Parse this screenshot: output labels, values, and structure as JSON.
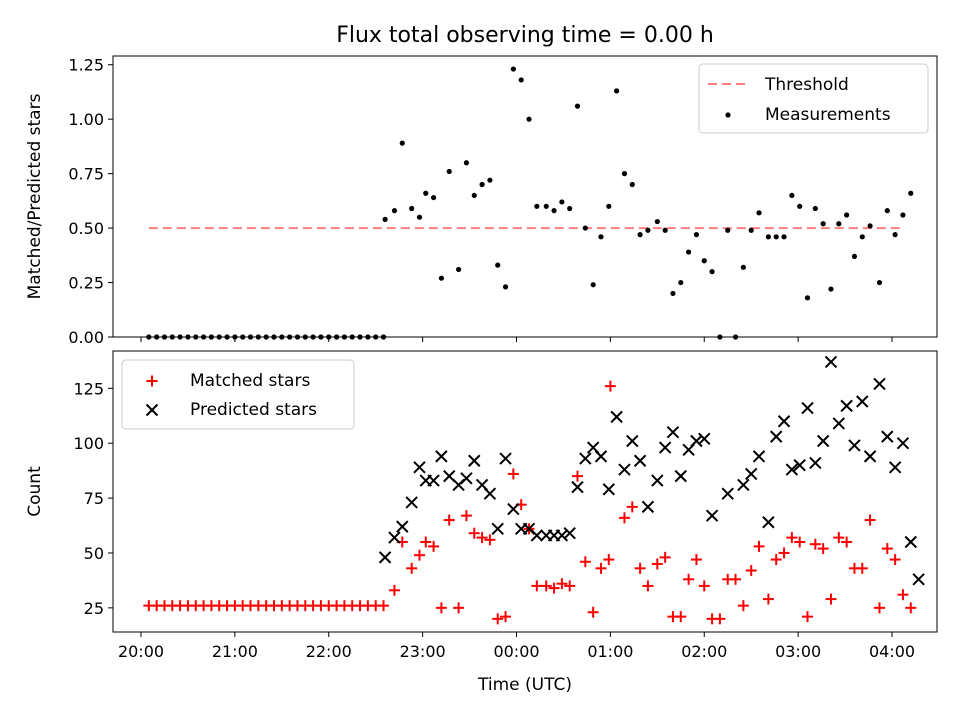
{
  "chart_data": [
    {
      "type": "scatter",
      "panel": "top",
      "title": "Flux total observing time = 0.00 h",
      "xlabel": "",
      "ylabel": "Matched/Predicted stars",
      "ylim": [
        0,
        1.29
      ],
      "yticks": [
        "0.00",
        "0.25",
        "0.50",
        "0.75",
        "1.00",
        "1.25"
      ],
      "legend_position": "top-right",
      "grid": false,
      "threshold": {
        "name": "Threshold",
        "value": 0.5,
        "color": "#ff7f7f",
        "x_start": "20:05",
        "x_end": "04:05"
      },
      "series": [
        {
          "name": "Measurements",
          "color": "#000000",
          "points": [
            [
              "20:05",
              0
            ],
            [
              "20:10",
              0
            ],
            [
              "20:15",
              0
            ],
            [
              "20:20",
              0
            ],
            [
              "20:25",
              0
            ],
            [
              "20:30",
              0
            ],
            [
              "20:35",
              0
            ],
            [
              "20:40",
              0
            ],
            [
              "20:45",
              0
            ],
            [
              "20:50",
              0
            ],
            [
              "20:55",
              0
            ],
            [
              "21:00",
              0
            ],
            [
              "21:05",
              0
            ],
            [
              "21:10",
              0
            ],
            [
              "21:15",
              0
            ],
            [
              "21:20",
              0
            ],
            [
              "21:25",
              0
            ],
            [
              "21:30",
              0
            ],
            [
              "21:35",
              0
            ],
            [
              "21:40",
              0
            ],
            [
              "21:45",
              0
            ],
            [
              "21:50",
              0
            ],
            [
              "21:55",
              0
            ],
            [
              "22:00",
              0
            ],
            [
              "22:05",
              0
            ],
            [
              "22:10",
              0
            ],
            [
              "22:15",
              0
            ],
            [
              "22:20",
              0
            ],
            [
              "22:25",
              0
            ],
            [
              "22:30",
              0
            ],
            [
              "22:35",
              0
            ],
            [
              "22:36",
              0.54
            ],
            [
              "22:42",
              0.58
            ],
            [
              "22:47",
              0.89
            ],
            [
              "22:53",
              0.59
            ],
            [
              "22:58",
              0.55
            ],
            [
              "23:02",
              0.66
            ],
            [
              "23:07",
              0.64
            ],
            [
              "23:12",
              0.27
            ],
            [
              "23:17",
              0.76
            ],
            [
              "23:23",
              0.31
            ],
            [
              "23:28",
              0.8
            ],
            [
              "23:33",
              0.65
            ],
            [
              "23:38",
              0.7
            ],
            [
              "23:43",
              0.72
            ],
            [
              "23:48",
              0.33
            ],
            [
              "23:53",
              0.23
            ],
            [
              "23:58",
              1.23
            ],
            [
              "00:03",
              1.18
            ],
            [
              "00:08",
              1.0
            ],
            [
              "00:13",
              0.6
            ],
            [
              "00:19",
              0.6
            ],
            [
              "00:24",
              0.58
            ],
            [
              "00:29",
              0.62
            ],
            [
              "00:34",
              0.59
            ],
            [
              "00:39",
              1.06
            ],
            [
              "00:44",
              0.5
            ],
            [
              "00:49",
              0.24
            ],
            [
              "00:54",
              0.46
            ],
            [
              "00:59",
              0.6
            ],
            [
              "01:04",
              1.13
            ],
            [
              "01:09",
              0.75
            ],
            [
              "01:14",
              0.7
            ],
            [
              "01:19",
              0.47
            ],
            [
              "01:24",
              0.49
            ],
            [
              "01:30",
              0.53
            ],
            [
              "01:35",
              0.49
            ],
            [
              "01:40",
              0.2
            ],
            [
              "01:45",
              0.25
            ],
            [
              "01:50",
              0.39
            ],
            [
              "01:55",
              0.47
            ],
            [
              "02:00",
              0.35
            ],
            [
              "02:05",
              0.3
            ],
            [
              "02:10",
              0.0
            ],
            [
              "02:15",
              0.49
            ],
            [
              "02:20",
              0.0
            ],
            [
              "02:25",
              0.32
            ],
            [
              "02:30",
              0.49
            ],
            [
              "02:35",
              0.57
            ],
            [
              "02:41",
              0.46
            ],
            [
              "02:46",
              0.46
            ],
            [
              "02:51",
              0.46
            ],
            [
              "02:56",
              0.65
            ],
            [
              "03:01",
              0.6
            ],
            [
              "03:06",
              0.18
            ],
            [
              "03:11",
              0.59
            ],
            [
              "03:16",
              0.52
            ],
            [
              "03:21",
              0.22
            ],
            [
              "03:26",
              0.52
            ],
            [
              "03:31",
              0.56
            ],
            [
              "03:36",
              0.37
            ],
            [
              "03:41",
              0.46
            ],
            [
              "03:46",
              0.51
            ],
            [
              "03:52",
              0.25
            ],
            [
              "03:57",
              0.58
            ],
            [
              "04:02",
              0.47
            ],
            [
              "04:07",
              0.56
            ],
            [
              "04:12",
              0.66
            ]
          ]
        }
      ]
    },
    {
      "type": "scatter",
      "panel": "bottom",
      "title": "",
      "xlabel": "Time (UTC)",
      "ylabel": "Count",
      "ylim": [
        14,
        142
      ],
      "yticks": [
        "25",
        "50",
        "75",
        "100",
        "125"
      ],
      "xticks": [
        "20:00",
        "21:00",
        "22:00",
        "23:00",
        "00:00",
        "01:00",
        "02:00",
        "03:00",
        "04:00"
      ],
      "legend_position": "top-left",
      "grid": false,
      "series": [
        {
          "name": "Matched stars",
          "color": "#ff0000",
          "marker": "plus",
          "points": [
            [
              "20:05",
              26
            ],
            [
              "20:10",
              26
            ],
            [
              "20:15",
              26
            ],
            [
              "20:20",
              26
            ],
            [
              "20:25",
              26
            ],
            [
              "20:30",
              26
            ],
            [
              "20:35",
              26
            ],
            [
              "20:40",
              26
            ],
            [
              "20:45",
              26
            ],
            [
              "20:50",
              26
            ],
            [
              "20:55",
              26
            ],
            [
              "21:00",
              26
            ],
            [
              "21:05",
              26
            ],
            [
              "21:10",
              26
            ],
            [
              "21:15",
              26
            ],
            [
              "21:20",
              26
            ],
            [
              "21:25",
              26
            ],
            [
              "21:30",
              26
            ],
            [
              "21:35",
              26
            ],
            [
              "21:40",
              26
            ],
            [
              "21:45",
              26
            ],
            [
              "21:50",
              26
            ],
            [
              "21:55",
              26
            ],
            [
              "22:00",
              26
            ],
            [
              "22:05",
              26
            ],
            [
              "22:10",
              26
            ],
            [
              "22:15",
              26
            ],
            [
              "22:20",
              26
            ],
            [
              "22:25",
              26
            ],
            [
              "22:30",
              26
            ],
            [
              "22:35",
              26
            ],
            [
              "22:42",
              33
            ],
            [
              "22:47",
              55
            ],
            [
              "22:53",
              43
            ],
            [
              "22:58",
              49
            ],
            [
              "23:02",
              55
            ],
            [
              "23:07",
              53
            ],
            [
              "23:12",
              25
            ],
            [
              "23:17",
              65
            ],
            [
              "23:23",
              25
            ],
            [
              "23:28",
              67
            ],
            [
              "23:33",
              59
            ],
            [
              "23:38",
              57
            ],
            [
              "23:43",
              56
            ],
            [
              "23:48",
              20
            ],
            [
              "23:53",
              21
            ],
            [
              "23:58",
              86
            ],
            [
              "00:03",
              72
            ],
            [
              "00:08",
              61
            ],
            [
              "00:13",
              35
            ],
            [
              "00:19",
              35
            ],
            [
              "00:24",
              34
            ],
            [
              "00:29",
              36
            ],
            [
              "00:34",
              35
            ],
            [
              "00:39",
              85
            ],
            [
              "00:44",
              46
            ],
            [
              "00:49",
              23
            ],
            [
              "00:54",
              43
            ],
            [
              "00:59",
              47
            ],
            [
              "01:00",
              126
            ],
            [
              "01:09",
              66
            ],
            [
              "01:14",
              71
            ],
            [
              "01:19",
              43
            ],
            [
              "01:24",
              35
            ],
            [
              "01:30",
              45
            ],
            [
              "01:35",
              48
            ],
            [
              "01:40",
              21
            ],
            [
              "01:45",
              21
            ],
            [
              "01:50",
              38
            ],
            [
              "01:55",
              47
            ],
            [
              "02:00",
              35
            ],
            [
              "02:05",
              20
            ],
            [
              "02:10",
              20
            ],
            [
              "02:15",
              38
            ],
            [
              "02:20",
              38
            ],
            [
              "02:25",
              26
            ],
            [
              "02:30",
              42
            ],
            [
              "02:35",
              53
            ],
            [
              "02:41",
              29
            ],
            [
              "02:46",
              47
            ],
            [
              "02:51",
              50
            ],
            [
              "02:56",
              57
            ],
            [
              "03:01",
              55
            ],
            [
              "03:06",
              21
            ],
            [
              "03:11",
              54
            ],
            [
              "03:16",
              52
            ],
            [
              "03:21",
              29
            ],
            [
              "03:26",
              57
            ],
            [
              "03:31",
              55
            ],
            [
              "03:36",
              43
            ],
            [
              "03:41",
              43
            ],
            [
              "03:46",
              65
            ],
            [
              "03:52",
              25
            ],
            [
              "03:57",
              52
            ],
            [
              "04:02",
              47
            ],
            [
              "04:07",
              31
            ],
            [
              "04:12",
              25
            ]
          ]
        },
        {
          "name": "Predicted stars",
          "color": "#000000",
          "marker": "x",
          "points": [
            [
              "22:36",
              48
            ],
            [
              "22:42",
              57
            ],
            [
              "22:47",
              62
            ],
            [
              "22:53",
              73
            ],
            [
              "22:58",
              89
            ],
            [
              "23:02",
              83
            ],
            [
              "23:07",
              83
            ],
            [
              "23:12",
              94
            ],
            [
              "23:17",
              85
            ],
            [
              "23:23",
              81
            ],
            [
              "23:28",
              84
            ],
            [
              "23:33",
              92
            ],
            [
              "23:38",
              81
            ],
            [
              "23:43",
              77
            ],
            [
              "23:48",
              61
            ],
            [
              "23:53",
              93
            ],
            [
              "23:58",
              70
            ],
            [
              "00:03",
              61
            ],
            [
              "00:08",
              61
            ],
            [
              "00:13",
              58
            ],
            [
              "00:19",
              58
            ],
            [
              "00:24",
              58
            ],
            [
              "00:29",
              58
            ],
            [
              "00:34",
              59
            ],
            [
              "00:39",
              80
            ],
            [
              "00:44",
              93
            ],
            [
              "00:49",
              98
            ],
            [
              "00:54",
              94
            ],
            [
              "00:59",
              79
            ],
            [
              "01:04",
              112
            ],
            [
              "01:09",
              88
            ],
            [
              "01:14",
              101
            ],
            [
              "01:19",
              92
            ],
            [
              "01:24",
              71
            ],
            [
              "01:30",
              83
            ],
            [
              "01:35",
              98
            ],
            [
              "01:40",
              105
            ],
            [
              "01:45",
              85
            ],
            [
              "01:50",
              97
            ],
            [
              "01:55",
              101
            ],
            [
              "02:00",
              102
            ],
            [
              "02:05",
              67
            ],
            [
              "02:15",
              77
            ],
            [
              "02:25",
              81
            ],
            [
              "02:30",
              86
            ],
            [
              "02:35",
              94
            ],
            [
              "02:41",
              64
            ],
            [
              "02:46",
              103
            ],
            [
              "02:51",
              110
            ],
            [
              "02:56",
              88
            ],
            [
              "03:01",
              90
            ],
            [
              "03:06",
              116
            ],
            [
              "03:11",
              91
            ],
            [
              "03:16",
              101
            ],
            [
              "03:21",
              137
            ],
            [
              "03:26",
              109
            ],
            [
              "03:31",
              117
            ],
            [
              "03:36",
              99
            ],
            [
              "03:41",
              119
            ],
            [
              "03:46",
              94
            ],
            [
              "03:52",
              127
            ],
            [
              "03:57",
              103
            ],
            [
              "04:02",
              89
            ],
            [
              "04:07",
              100
            ],
            [
              "04:12",
              55
            ],
            [
              "04:17",
              38
            ]
          ]
        }
      ]
    }
  ]
}
